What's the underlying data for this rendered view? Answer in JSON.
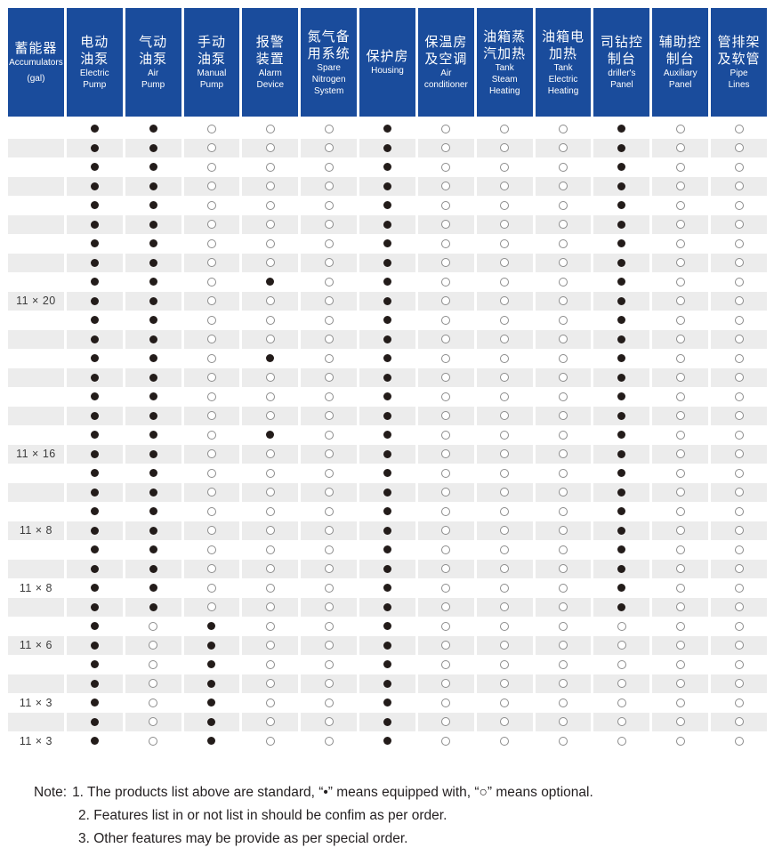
{
  "colors": {
    "header-bg": "#1a4c9c",
    "header-text": "#ffffff",
    "row-alt": "#ececec",
    "dot-fill": "#231c1a",
    "circle-stroke": "#8c8c8c",
    "note-text": "#231f20",
    "label-text": "#3c3c3c"
  },
  "table": {
    "columns": [
      {
        "key": "accumulators",
        "zh": [
          "蓄能器"
        ],
        "en": [
          "Accumulators"
        ],
        "sub": "(gal)"
      },
      {
        "key": "electric-pump",
        "zh": [
          "电动",
          "油泵"
        ],
        "en": [
          "Electric",
          "Pump"
        ]
      },
      {
        "key": "air-pump",
        "zh": [
          "气动",
          "油泵"
        ],
        "en": [
          "Air",
          "Pump"
        ]
      },
      {
        "key": "manual-pump",
        "zh": [
          "手动",
          "油泵"
        ],
        "en": [
          "Manual",
          "Pump"
        ]
      },
      {
        "key": "alarm-device",
        "zh": [
          "报警",
          "装置"
        ],
        "en": [
          "Alarm",
          "Device"
        ]
      },
      {
        "key": "spare-nitrogen-system",
        "zh": [
          "氮气备",
          "用系统"
        ],
        "en": [
          "Spare",
          "Nitrogen",
          "System"
        ]
      },
      {
        "key": "housing",
        "zh": [
          "保护房"
        ],
        "en": [
          "Housing"
        ]
      },
      {
        "key": "air-conditioner",
        "zh": [
          "保温房",
          "及空调"
        ],
        "en": [
          "Air",
          "conditioner"
        ]
      },
      {
        "key": "tank-steam-heating",
        "zh": [
          "油箱蒸",
          "汽加热"
        ],
        "en": [
          "Tank",
          "Steam",
          "Heating"
        ]
      },
      {
        "key": "tank-electric-heating",
        "zh": [
          "油箱电",
          "加热"
        ],
        "en": [
          "Tank",
          "Electric",
          "Heating"
        ]
      },
      {
        "key": "drillers-panel",
        "zh": [
          "司钻控",
          "制台"
        ],
        "en": [
          "driller's",
          "Panel"
        ]
      },
      {
        "key": "auxiliary-panel",
        "zh": [
          "辅助控",
          "制台"
        ],
        "en": [
          "Auxiliary",
          "Panel"
        ]
      },
      {
        "key": "pipe-lines",
        "zh": [
          "管排架",
          "及软管"
        ],
        "en": [
          "Pipe",
          "Lines"
        ]
      }
    ],
    "legend": {
      "filled_symbol": "●",
      "filled_meaning": "equipped with",
      "empty_symbol": "○",
      "empty_meaning": "optional"
    },
    "rows": [
      {
        "label": "",
        "values": [
          1,
          1,
          0,
          0,
          0,
          1,
          0,
          0,
          0,
          1,
          0,
          0
        ]
      },
      {
        "label": "",
        "values": [
          1,
          1,
          0,
          0,
          0,
          1,
          0,
          0,
          0,
          1,
          0,
          0
        ]
      },
      {
        "label": "",
        "values": [
          1,
          1,
          0,
          0,
          0,
          1,
          0,
          0,
          0,
          1,
          0,
          0
        ]
      },
      {
        "label": "",
        "values": [
          1,
          1,
          0,
          0,
          0,
          1,
          0,
          0,
          0,
          1,
          0,
          0
        ]
      },
      {
        "label": "",
        "values": [
          1,
          1,
          0,
          0,
          0,
          1,
          0,
          0,
          0,
          1,
          0,
          0
        ]
      },
      {
        "label": "",
        "values": [
          1,
          1,
          0,
          0,
          0,
          1,
          0,
          0,
          0,
          1,
          0,
          0
        ]
      },
      {
        "label": "",
        "values": [
          1,
          1,
          0,
          0,
          0,
          1,
          0,
          0,
          0,
          1,
          0,
          0
        ]
      },
      {
        "label": "",
        "values": [
          1,
          1,
          0,
          0,
          0,
          1,
          0,
          0,
          0,
          1,
          0,
          0
        ]
      },
      {
        "label": "",
        "values": [
          1,
          1,
          0,
          1,
          0,
          1,
          0,
          0,
          0,
          1,
          0,
          0
        ]
      },
      {
        "label": "11 × 20",
        "values": [
          1,
          1,
          0,
          0,
          0,
          1,
          0,
          0,
          0,
          1,
          0,
          0
        ]
      },
      {
        "label": "",
        "values": [
          1,
          1,
          0,
          0,
          0,
          1,
          0,
          0,
          0,
          1,
          0,
          0
        ]
      },
      {
        "label": "",
        "values": [
          1,
          1,
          0,
          0,
          0,
          1,
          0,
          0,
          0,
          1,
          0,
          0
        ]
      },
      {
        "label": "",
        "values": [
          1,
          1,
          0,
          1,
          0,
          1,
          0,
          0,
          0,
          1,
          0,
          0
        ]
      },
      {
        "label": "",
        "values": [
          1,
          1,
          0,
          0,
          0,
          1,
          0,
          0,
          0,
          1,
          0,
          0
        ]
      },
      {
        "label": "",
        "values": [
          1,
          1,
          0,
          0,
          0,
          1,
          0,
          0,
          0,
          1,
          0,
          0
        ]
      },
      {
        "label": "",
        "values": [
          1,
          1,
          0,
          0,
          0,
          1,
          0,
          0,
          0,
          1,
          0,
          0
        ]
      },
      {
        "label": "",
        "values": [
          1,
          1,
          0,
          1,
          0,
          1,
          0,
          0,
          0,
          1,
          0,
          0
        ]
      },
      {
        "label": "11 × 16",
        "values": [
          1,
          1,
          0,
          0,
          0,
          1,
          0,
          0,
          0,
          1,
          0,
          0
        ]
      },
      {
        "label": "",
        "values": [
          1,
          1,
          0,
          0,
          0,
          1,
          0,
          0,
          0,
          1,
          0,
          0
        ]
      },
      {
        "label": "",
        "values": [
          1,
          1,
          0,
          0,
          0,
          1,
          0,
          0,
          0,
          1,
          0,
          0
        ]
      },
      {
        "label": "",
        "values": [
          1,
          1,
          0,
          0,
          0,
          1,
          0,
          0,
          0,
          1,
          0,
          0
        ]
      },
      {
        "label": "11 × 8",
        "values": [
          1,
          1,
          0,
          0,
          0,
          1,
          0,
          0,
          0,
          1,
          0,
          0
        ]
      },
      {
        "label": "",
        "values": [
          1,
          1,
          0,
          0,
          0,
          1,
          0,
          0,
          0,
          1,
          0,
          0
        ]
      },
      {
        "label": "",
        "values": [
          1,
          1,
          0,
          0,
          0,
          1,
          0,
          0,
          0,
          1,
          0,
          0
        ]
      },
      {
        "label": "11 × 8",
        "values": [
          1,
          1,
          0,
          0,
          0,
          1,
          0,
          0,
          0,
          1,
          0,
          0
        ]
      },
      {
        "label": "",
        "values": [
          1,
          1,
          0,
          0,
          0,
          1,
          0,
          0,
          0,
          1,
          0,
          0
        ]
      },
      {
        "label": "",
        "values": [
          1,
          0,
          1,
          0,
          0,
          1,
          0,
          0,
          0,
          0,
          0,
          0
        ]
      },
      {
        "label": "11 × 6",
        "values": [
          1,
          0,
          1,
          0,
          0,
          1,
          0,
          0,
          0,
          0,
          0,
          0
        ]
      },
      {
        "label": "",
        "values": [
          1,
          0,
          1,
          0,
          0,
          1,
          0,
          0,
          0,
          0,
          0,
          0
        ]
      },
      {
        "label": "",
        "values": [
          1,
          0,
          1,
          0,
          0,
          1,
          0,
          0,
          0,
          0,
          0,
          0
        ]
      },
      {
        "label": "11 × 3",
        "values": [
          1,
          0,
          1,
          0,
          0,
          1,
          0,
          0,
          0,
          0,
          0,
          0
        ]
      },
      {
        "label": "",
        "values": [
          1,
          0,
          1,
          0,
          0,
          1,
          0,
          0,
          0,
          0,
          0,
          0
        ]
      },
      {
        "label": "11 × 3",
        "values": [
          1,
          0,
          1,
          0,
          0,
          1,
          0,
          0,
          0,
          0,
          0,
          0
        ]
      }
    ]
  },
  "notes": {
    "label": "Note:",
    "items": [
      "1. The products list above are standard, “•” means equipped with, “○” means optional.",
      "2. Features list in or not list in should be confim as per order.",
      "3. Other features may be provide as per special order."
    ]
  }
}
